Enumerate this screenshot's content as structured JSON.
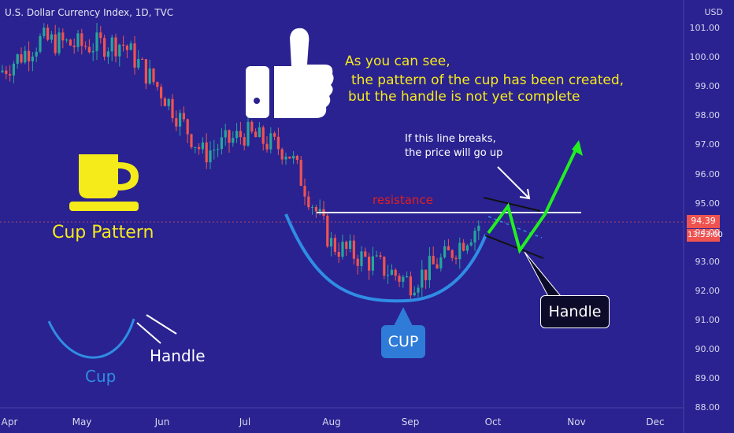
{
  "header": {
    "title": "U.S. Dollar Currency Index, 1D, TVC",
    "currency": "USD"
  },
  "price_tags": {
    "last_price": "94.39",
    "countdown": "13:53:00"
  },
  "annotations": {
    "intro_line1": "As you can see,",
    "intro_line2": "the pattern of the cup has been created,",
    "intro_line3": "but the handle is not yet complete",
    "break_line1": "If this line breaks,",
    "break_line2": "the price will go up",
    "resistance": "resistance",
    "cup_pattern": "Cup Pattern",
    "cup_label": "CUP",
    "handle_label": "Handle",
    "legend_cup": "Cup",
    "legend_handle": "Handle"
  },
  "colors": {
    "background": "#2a2290",
    "candle_up": "#26a69a",
    "candle_down": "#ef5350",
    "cup_curve": "#2f8de4",
    "arrow": "#22ee22",
    "resistance_text": "#e02020",
    "highlight_text": "#f5ea1a"
  },
  "chart_data": {
    "type": "candlestick",
    "title": "U.S. Dollar Currency Index, 1D, TVC",
    "y_axis": {
      "ticks": [
        "101.00",
        "100.00",
        "99.00",
        "98.00",
        "97.00",
        "96.00",
        "95.00",
        "94.00",
        "93.00",
        "92.00",
        "91.00",
        "90.00",
        "89.00",
        "88.00"
      ],
      "range": [
        88.0,
        101.5
      ],
      "unit": "USD"
    },
    "x_axis": {
      "ticks": [
        "Apr",
        "May",
        "Jun",
        "Jul",
        "Aug",
        "Sep",
        "Oct",
        "Nov",
        "Dec"
      ]
    },
    "close_path": [
      {
        "x": "Apr",
        "y": 99.5
      },
      {
        "x": "Apr-mid",
        "y": 100.6
      },
      {
        "x": "May",
        "y": 100.4
      },
      {
        "x": "May-mid",
        "y": 100.5
      },
      {
        "x": "Jun",
        "y": 98.8
      },
      {
        "x": "Jun-mid",
        "y": 96.7
      },
      {
        "x": "Jul",
        "y": 97.4
      },
      {
        "x": "Jul-mid",
        "y": 96.8
      },
      {
        "x": "Aug",
        "y": 93.6
      },
      {
        "x": "Aug-mid",
        "y": 93.0
      },
      {
        "x": "Sep",
        "y": 92.3
      },
      {
        "x": "Sep-mid",
        "y": 93.2
      },
      {
        "x": "Oct",
        "y": 94.39
      }
    ],
    "resistance_level": 94.8,
    "last_price": 94.39,
    "projection": [
      {
        "x": "Oct",
        "y": 94.4
      },
      {
        "x": "Oct-mid",
        "y": 93.6
      },
      {
        "x": "Oct-late",
        "y": 97.1
      }
    ]
  }
}
